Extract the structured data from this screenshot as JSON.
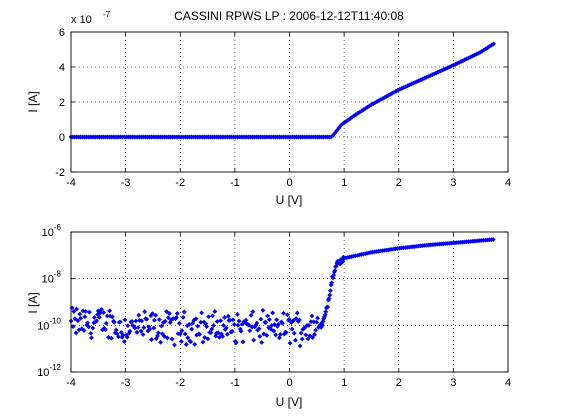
{
  "chart_data": [
    {
      "type": "scatter",
      "title": "CASSINI RPWS LP : 2006-12-12T11:40:08",
      "xlabel": "U [V]",
      "ylabel": "I [A]",
      "xlim": [
        -4,
        4
      ],
      "ylim": [
        -2,
        6
      ],
      "y_exponent_label": "x 10",
      "y_exponent_power": "-7",
      "xticks": [
        "-4",
        "-3",
        "-2",
        "-1",
        "0",
        "1",
        "2",
        "3",
        "4"
      ],
      "yticks": [
        "-2",
        "0",
        "2",
        "4",
        "6"
      ],
      "grid": true,
      "marker_color": "#0000ff",
      "sweep": {
        "x_start": -4.0,
        "x_end": 3.75,
        "step": 0.035,
        "knee_x": 0.78,
        "knee_y": 0.02,
        "curve_points": [
          [
            0.78,
            0.02
          ],
          [
            0.95,
            0.7
          ],
          [
            1.2,
            1.25
          ],
          [
            1.5,
            1.85
          ],
          [
            2.0,
            2.7
          ],
          [
            2.5,
            3.4
          ],
          [
            3.0,
            4.1
          ],
          [
            3.5,
            4.85
          ],
          [
            3.75,
            5.35
          ]
        ]
      }
    },
    {
      "type": "scatter",
      "title": "",
      "xlabel": "U [V]",
      "ylabel": "I [A]",
      "xlim": [
        -4,
        4
      ],
      "ylim": [
        1e-12,
        1e-06
      ],
      "yscale": "log",
      "xticks": [
        "-4",
        "-3",
        "-2",
        "-1",
        "0",
        "1",
        "2",
        "3",
        "4"
      ],
      "yticks": [
        {
          "base": "10",
          "exp": "-12",
          "value": 1e-12
        },
        {
          "base": "10",
          "exp": "-10",
          "value": 1e-10
        },
        {
          "base": "10",
          "exp": "-8",
          "value": 1e-08
        },
        {
          "base": "10",
          "exp": "-6",
          "value": 1e-06
        }
      ],
      "grid": true,
      "marker_color": "#0000ff",
      "noise_floor": {
        "x_start": -4.0,
        "x_end": 0.58,
        "center": 8e-11,
        "left_center": 1.3e-10
      },
      "transition": [
        [
          0.58,
          9e-11
        ],
        [
          0.62,
          1.5e-10
        ],
        [
          0.66,
          3e-10
        ],
        [
          0.7,
          8e-10
        ],
        [
          0.74,
          3e-09
        ],
        [
          0.78,
          1e-08
        ],
        [
          0.82,
          2.5e-08
        ],
        [
          0.88,
          4.5e-08
        ],
        [
          0.95,
          6e-08
        ],
        [
          1.0,
          7.5e-08
        ]
      ],
      "curve_points": [
        [
          1.0,
          7.5e-08
        ],
        [
          1.5,
          1.35e-07
        ],
        [
          2.0,
          2e-07
        ],
        [
          2.5,
          2.7e-07
        ],
        [
          3.0,
          3.4e-07
        ],
        [
          3.5,
          4.3e-07
        ],
        [
          3.75,
          4.8e-07
        ]
      ]
    }
  ]
}
